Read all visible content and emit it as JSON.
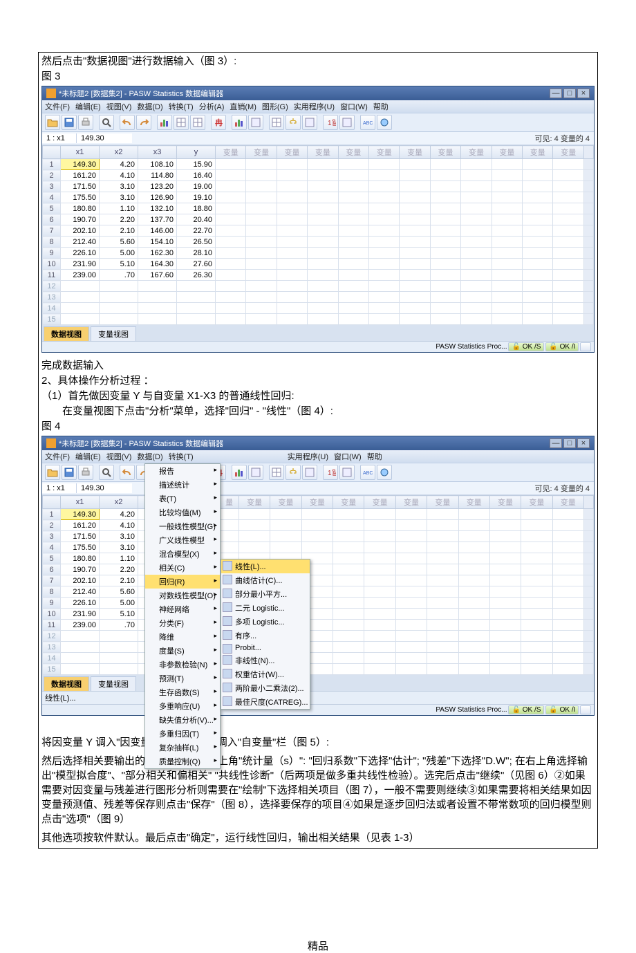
{
  "doc": {
    "line1": "然后点击\"数据视图\"进行数据输入（图 3）:",
    "fig3": "图 3",
    "line_done": "完成数据输入",
    "line2": "2、具体操作分析过程 ：",
    "line3": "（1）首先做因变量 Y 与自变量 X1-X3 的普通线性回归:",
    "line4": "　　在变量视图下点击\"分析\"菜单，选择\"回归\" - \"线性\"（图 4）:",
    "fig4": "图 4",
    "para1": "将因变量 Y 调入\"因变量\"栏，将 x1-x3 调入\"自变量\"栏（图 5）:",
    "para2": "然后选择相关要输出的结果：①点击右上角\"统计量（s）\": \"回归系数\"下选择\"估计\"; \"残差\"下选择\"D.W\"; 在右上角选择输出\"模型拟合度\"、\"部分相关和偏相关\" \"共线性诊断\"（后两项是做多重共线性检验）。选完后点击\"继续\"（见图 6）②如果需要对因变量与残差进行图形分析则需要在\"绘制\"下选择相关项目（图 7），一般不需要则继续③如果需要将相关结果如因变量预测值、残差等保存则点击\"保存\"（图 8），选择要保存的项目④如果是逐步回归法或者设置不带常数项的回归模型则点击\"选项\"（图 9）",
    "para3": "其他选项按软件默认。最后点击\"确定\"，运行线性回归，输出相关结果（见表 1-3）",
    "footer": "精品"
  },
  "app": {
    "title": "*未标题2 [数据集2] - PASW Statistics 数据编辑器",
    "winbtns": [
      "—",
      "□",
      "×"
    ],
    "menus": [
      "文件(F)",
      "编辑(E)",
      "视图(V)",
      "数据(D)",
      "转换(T)",
      "分析(A)",
      "直销(M)",
      "图形(G)",
      "实用程序(U)",
      "窗口(W)",
      "帮助"
    ],
    "cellname": "1 : x1",
    "cellval": "149.30",
    "visibility": "可见: 4 变量的 4",
    "columns": [
      "x1",
      "x2",
      "x3",
      "y"
    ],
    "ghostcol": "变量",
    "rows": [
      [
        "149.30",
        "4.20",
        "108.10",
        "15.90"
      ],
      [
        "161.20",
        "4.10",
        "114.80",
        "16.40"
      ],
      [
        "171.50",
        "3.10",
        "123.20",
        "19.00"
      ],
      [
        "175.50",
        "3.10",
        "126.90",
        "19.10"
      ],
      [
        "180.80",
        "1.10",
        "132.10",
        "18.80"
      ],
      [
        "190.70",
        "2.20",
        "137.70",
        "20.40"
      ],
      [
        "202.10",
        "2.10",
        "146.00",
        "22.70"
      ],
      [
        "212.40",
        "5.60",
        "154.10",
        "26.50"
      ],
      [
        "226.10",
        "5.00",
        "162.30",
        "28.10"
      ],
      [
        "231.90",
        "5.10",
        "164.30",
        "27.60"
      ],
      [
        "239.00",
        ".70",
        "167.60",
        "26.30"
      ]
    ],
    "tabs": {
      "data": "数据视图",
      "var": "变量视图"
    },
    "status": {
      "proc": "PASW Statistics Proc...",
      "ok1": "OK /S",
      "ok2": "OK /I"
    }
  },
  "app2": {
    "menus_short": [
      "文件(F)",
      "编辑(E)",
      "视图(V)",
      "数据(D)",
      "转换(T)"
    ],
    "menus_rest": [
      "实用程序(U)",
      "窗口(W)",
      "帮助"
    ],
    "analysis_menu": [
      "报告",
      "描述统计",
      "表(T)",
      "比较均值(M)",
      "一般线性模型(G)",
      "广义线性模型",
      "混合模型(X)",
      "相关(C)",
      "回归(R)",
      "对数线性模型(O)",
      "神经网络",
      "分类(F)",
      "降维",
      "度量(S)",
      "非参数检验(N)",
      "预测(T)",
      "生存函数(S)",
      "多重响应(U)",
      "缺失值分析(V)...",
      "多重归因(T)",
      "复杂抽样(L)",
      "质量控制(Q)"
    ],
    "analysis_hi": 8,
    "reg_menu": [
      "线性(L)...",
      "曲线估计(C)...",
      "部分最小平方...",
      "二元 Logistic...",
      "多项 Logistic...",
      "有序...",
      "Probit...",
      "非线性(N)...",
      "权重估计(W)...",
      "两阶最小二乘法(2)...",
      "最佳尺度(CATREG)..."
    ],
    "reg_hi": 0,
    "rows2": [
      [
        "149.30",
        "4.20"
      ],
      [
        "161.20",
        "4.10"
      ],
      [
        "171.50",
        "3.10"
      ],
      [
        "175.50",
        "3.10"
      ],
      [
        "180.80",
        "1.10"
      ],
      [
        "190.70",
        "2.20"
      ],
      [
        "202.10",
        "2.10"
      ],
      [
        "212.40",
        "5.60"
      ],
      [
        "226.10",
        "5.00"
      ],
      [
        "231.90",
        "5.10"
      ],
      [
        "239.00",
        ".70"
      ]
    ],
    "linear_hint": "线性(L)..."
  },
  "colors": {
    "titlebar_top": "#5a7db5",
    "titlebar_bot": "#3a5d95",
    "menubar": "#e8eef8",
    "toolbar": "#e6eef9",
    "grid_header": "#dde6f3",
    "sel_cell": "#fff7a0",
    "tab_active": "#f8d070",
    "menu_hi": "#ffe070"
  },
  "icons": {
    "open": "#f4c460",
    "save": "#5b8dd6",
    "print": "#888",
    "undo": "#d48a3a",
    "redo": "#d48a3a"
  }
}
